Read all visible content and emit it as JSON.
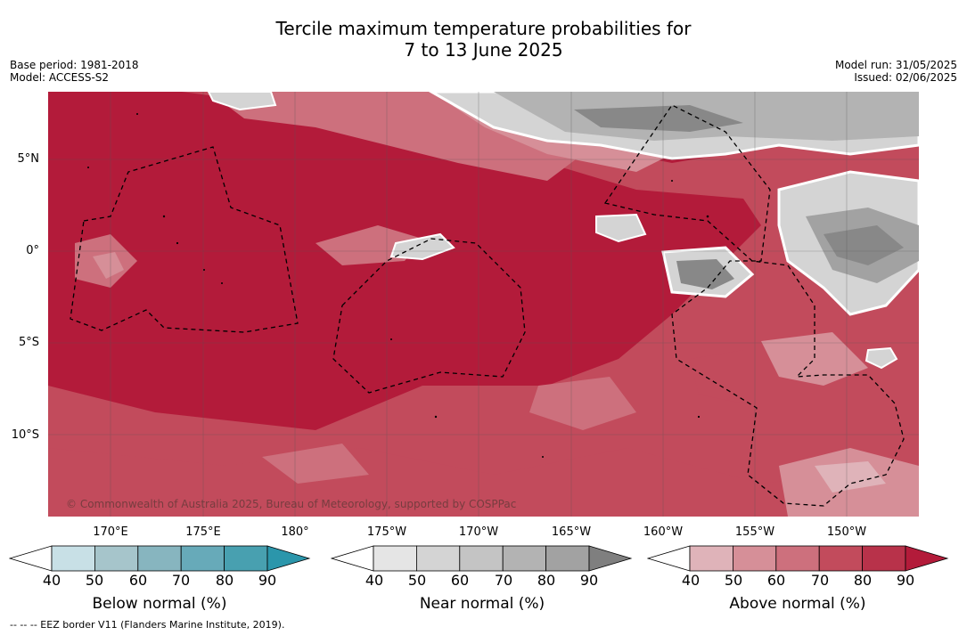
{
  "title_line1": "Tercile maximum temperature probabilities for",
  "title_line2": "7 to 13 June 2025",
  "meta_left": {
    "base_period": "Base period: 1981-2018",
    "model": "Model: ACCESS-S2"
  },
  "meta_right": {
    "model_run": "Model run: 31/05/2025",
    "issued": "Issued: 02/06/2025"
  },
  "map": {
    "lat_labels": [
      "5°N",
      "0°",
      "5°S",
      "10°S"
    ],
    "lon_labels": [
      "170°E",
      "175°E",
      "180°",
      "175°W",
      "170°W",
      "165°W",
      "160°W",
      "155°W",
      "150°W"
    ],
    "copyright": "© Commonwealth of Australia 2025, Bureau of Meteorology, supported by COSPPac",
    "dominant_category": "Above normal",
    "colors": {
      "above_dark": "#b31b3a",
      "above_mid": "#c24b5c",
      "above_light": "#d5858f",
      "near_dark": "#888888",
      "near_light": "#d4d4d4"
    }
  },
  "colorbars": [
    {
      "title": "Below normal (%)",
      "ticks": [
        "40",
        "50",
        "60",
        "70",
        "80",
        "90"
      ],
      "colors": [
        "#ffffff",
        "#c8e0e6",
        "#a6c5cb",
        "#87b5bf",
        "#67aab9",
        "#48a0b0",
        "#2b96ab"
      ]
    },
    {
      "title": "Near normal (%)",
      "ticks": [
        "40",
        "50",
        "60",
        "70",
        "80",
        "90"
      ],
      "colors": [
        "#ffffff",
        "#e5e5e5",
        "#d4d4d4",
        "#c4c4c4",
        "#b3b3b3",
        "#a2a2a2",
        "#7f7f7f"
      ]
    },
    {
      "title": "Above normal (%)",
      "ticks": [
        "40",
        "50",
        "60",
        "70",
        "80",
        "90"
      ],
      "colors": [
        "#ffffff",
        "#dfb3b9",
        "#d68f98",
        "#cd707d",
        "#c24b5c",
        "#b8324a",
        "#b31b3a"
      ]
    }
  ],
  "footer": "--  --  -- EEZ border V11 (Flanders Marine Institute, 2019)."
}
